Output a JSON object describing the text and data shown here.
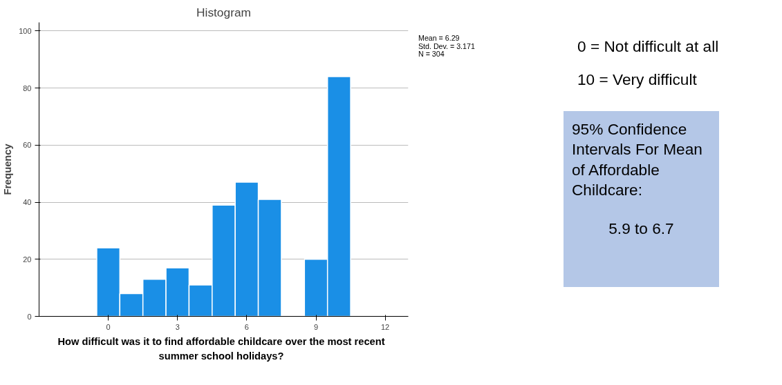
{
  "chart_data": {
    "type": "histogram",
    "title": "Histogram",
    "xlabel": "How difficult was it to find affordable childcare over the most recent summer school holidays?",
    "ylabel": "Frequency",
    "bins": [
      -0.5,
      0.5,
      1.5,
      2.5,
      3.5,
      4.5,
      5.5,
      6.5,
      7.5,
      8.5,
      9.5,
      10.5
    ],
    "values": [
      24,
      8,
      13,
      17,
      11,
      39,
      47,
      41,
      0,
      20,
      84
    ],
    "color": "#1a8fe6",
    "xlim": [
      -3,
      13
    ],
    "xticks": [
      0,
      3,
      6,
      9,
      12
    ],
    "ylim": [
      0,
      103
    ],
    "yticks": [
      0,
      20,
      40,
      60,
      80,
      100
    ],
    "grid": "y",
    "annotations": [
      "Mean = 6.29",
      "Std. Dev. = 3.171",
      "N = 304",
      "0 = Not difficult at all",
      "10 = Very difficult",
      "95% Confidence Intervals For Mean of Affordable Childcare:",
      "5.9 to 6.7"
    ]
  }
}
